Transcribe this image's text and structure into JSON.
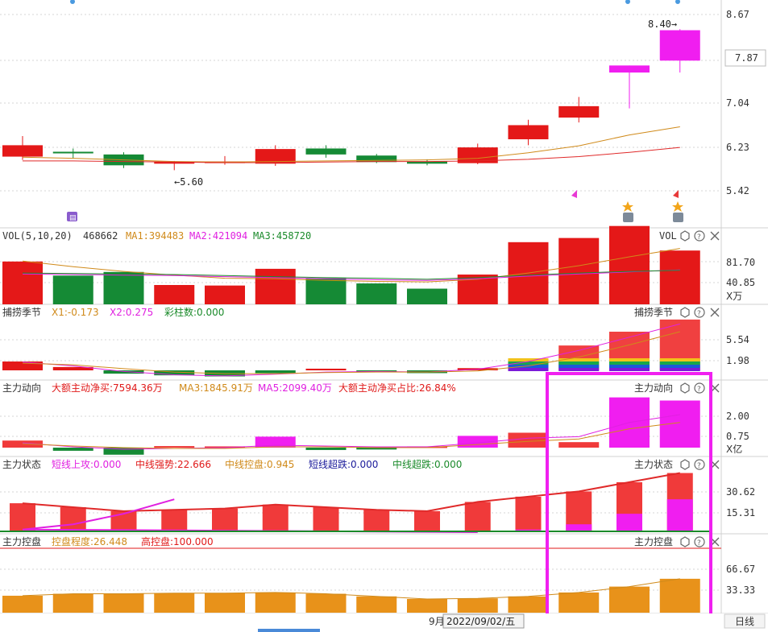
{
  "chart_data": {
    "type": "candlestick-multi-panel",
    "price": {
      "y_ticks": [
        "8.67",
        "7.87",
        "7.04",
        "6.23",
        "5.42"
      ],
      "high_label": "8.40→",
      "low_label": "←5.60",
      "candles": [
        {
          "o": 6.05,
          "c": 6.26,
          "h": 6.43,
          "l": 5.99,
          "up": true
        },
        {
          "o": 6.11,
          "c": 6.14,
          "h": 6.2,
          "l": 6.02,
          "up": false
        },
        {
          "o": 6.09,
          "c": 5.89,
          "h": 6.13,
          "l": 5.84,
          "up": false
        },
        {
          "o": 5.95,
          "c": 5.92,
          "h": 5.97,
          "l": 5.8,
          "up": true
        },
        {
          "o": 5.96,
          "c": 5.94,
          "h": 6.06,
          "l": 5.9,
          "up": true
        },
        {
          "o": 5.92,
          "c": 6.19,
          "h": 6.26,
          "l": 5.88,
          "up": true
        },
        {
          "o": 6.2,
          "c": 6.09,
          "h": 6.26,
          "l": 6.03,
          "up": false
        },
        {
          "o": 6.07,
          "c": 5.95,
          "h": 6.1,
          "l": 5.93,
          "up": false
        },
        {
          "o": 5.96,
          "c": 5.92,
          "h": 6.0,
          "l": 5.89,
          "up": false
        },
        {
          "o": 5.93,
          "c": 6.22,
          "h": 6.29,
          "l": 5.91,
          "up": true
        },
        {
          "o": 6.37,
          "c": 6.63,
          "h": 6.73,
          "l": 6.26,
          "up": true
        },
        {
          "o": 6.77,
          "c": 6.98,
          "h": 7.15,
          "l": 6.68,
          "up": true
        },
        {
          "o": 7.6,
          "c": 7.73,
          "h": 7.73,
          "l": 6.94,
          "up": true
        },
        {
          "o": 7.82,
          "c": 8.38,
          "h": 8.4,
          "l": 7.6,
          "up": true
        }
      ]
    },
    "vol": {
      "title": "VOL(5,10,20)",
      "value": "468662",
      "ma1": "MA1:394483",
      "ma2": "MA2:421094",
      "ma3": "MA3:458720",
      "tag": "VOL",
      "y_ticks": [
        "81.70",
        "40.85"
      ],
      "unit": "X万",
      "values": [
        82,
        55,
        62,
        37,
        36,
        68,
        50,
        40,
        30,
        57,
        119,
        127,
        150,
        103
      ],
      "up": [
        true,
        false,
        false,
        true,
        true,
        true,
        false,
        false,
        false,
        true,
        true,
        true,
        true,
        true
      ]
    },
    "p3": {
      "title": "捕捞季节",
      "x1": "X1:-0.173",
      "x2": "X2:0.275",
      "bars": "彩柱数:0.000",
      "y_ticks": [
        "5.54",
        "1.98"
      ]
    },
    "p4": {
      "title": "主力动向",
      "a": "大额主动净买:7594.36万",
      "b": "MA3:1845.91万",
      "c": "MA5:2099.40万",
      "d": "大额主动净买占比:26.84%",
      "y_ticks": [
        "2.00",
        "0.75"
      ],
      "unit": "X亿"
    },
    "p5": {
      "title": "主力状态",
      "a": "短线上攻:0.000",
      "b": "中线强势:22.666",
      "c": "中线控盘:0.945",
      "d": "短线超跌:0.000",
      "e": "中线超跌:0.000",
      "y_ticks": [
        "30.62",
        "15.31"
      ]
    },
    "p6": {
      "title": "主力控盘",
      "a": "控盘程度:26.448",
      "b": "高控盘:100.000",
      "y_ticks": [
        "66.67",
        "33.33"
      ],
      "values": [
        26,
        29,
        29,
        30,
        30,
        31,
        29,
        25,
        21,
        22,
        25,
        31,
        40,
        52
      ]
    },
    "x_label": "9月",
    "date_label": "2022/09/02/五",
    "period_label": "日线"
  }
}
